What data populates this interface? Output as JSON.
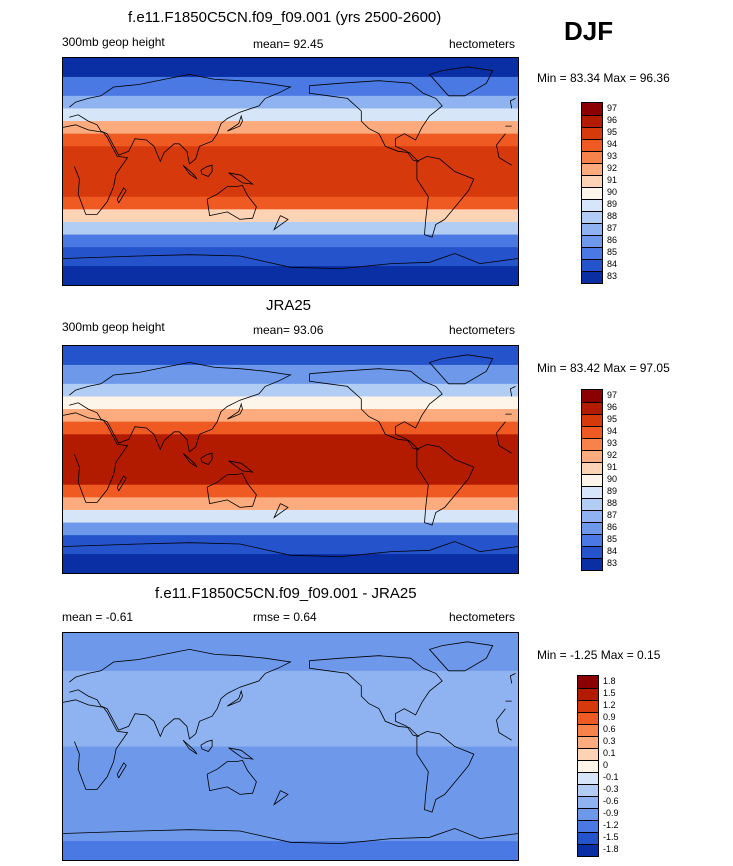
{
  "season": "DJF",
  "panels": [
    {
      "id": "model",
      "title": "f.e11.F1850C5CN.f09_f09.001 (yrs 2500-2600)",
      "left_label": "300mb geop height",
      "center_label": "mean=  92.45",
      "right_label": "hectometers",
      "minmax": "Min =  83.34 Max =  96.36",
      "colorbar_labels": [
        "97",
        "96",
        "95",
        "94",
        "93",
        "92",
        "91",
        "90",
        "89",
        "88",
        "87",
        "86",
        "85",
        "84",
        "83"
      ]
    },
    {
      "id": "obs",
      "title": "JRA25",
      "left_label": "300mb geop height",
      "center_label": "mean=  93.06",
      "right_label": "hectometers",
      "minmax": "Min =  83.42 Max =  97.05",
      "colorbar_labels": [
        "97",
        "96",
        "95",
        "94",
        "93",
        "92",
        "91",
        "90",
        "89",
        "88",
        "87",
        "86",
        "85",
        "84",
        "83"
      ]
    },
    {
      "id": "diff",
      "title": "f.e11.F1850C5CN.f09_f09.001 - JRA25",
      "left_label": "mean =  -0.61",
      "center_label": "rmse =   0.64",
      "right_label": "hectometers",
      "minmax": "Min =  -1.25 Max =   0.15",
      "colorbar_labels": [
        "1.8",
        "1.5",
        "1.2",
        "0.9",
        "0.6",
        "0.3",
        "0.1",
        "0",
        "-0.1",
        "-0.3",
        "-0.6",
        "-0.9",
        "-1.2",
        "-1.5",
        "-1.8"
      ]
    }
  ],
  "chart_data": [
    {
      "type": "heatmap",
      "title": "f.e11.F1850C5CN.f09_f09.001 (yrs 2500-2600)",
      "variable": "300mb geop height",
      "units": "hectometers",
      "mean": 92.45,
      "min": 83.34,
      "max": 96.36,
      "levels": [
        83,
        84,
        85,
        86,
        87,
        88,
        89,
        90,
        91,
        92,
        93,
        94,
        95,
        96,
        97
      ],
      "zonal_profile": {
        "lat": [
          90,
          75,
          60,
          50,
          40,
          30,
          20,
          10,
          0,
          -10,
          -20,
          -30,
          -40,
          -50,
          -60,
          -75,
          -90
        ],
        "value": [
          83.4,
          84.5,
          86.5,
          88.5,
          91,
          93.5,
          95.2,
          95.8,
          96.0,
          95.8,
          95.2,
          93.5,
          90,
          87,
          84.5,
          83.6,
          83.4
        ]
      }
    },
    {
      "type": "heatmap",
      "title": "JRA25",
      "variable": "300mb geop height",
      "units": "hectometers",
      "mean": 93.06,
      "min": 83.42,
      "max": 97.05,
      "levels": [
        83,
        84,
        85,
        86,
        87,
        88,
        89,
        90,
        91,
        92,
        93,
        94,
        95,
        96,
        97
      ],
      "zonal_profile": {
        "lat": [
          90,
          75,
          60,
          50,
          40,
          30,
          20,
          10,
          0,
          -10,
          -20,
          -30,
          -40,
          -50,
          -60,
          -75,
          -90
        ],
        "value": [
          83.5,
          85,
          87,
          89,
          91.5,
          94,
          95.7,
          96.3,
          96.5,
          96.3,
          95.7,
          94,
          91,
          88,
          85,
          84,
          83.5
        ]
      }
    },
    {
      "type": "heatmap",
      "title": "f.e11.F1850C5CN.f09_f09.001 - JRA25",
      "units": "hectometers",
      "mean": -0.61,
      "rmse": 0.64,
      "min": -1.25,
      "max": 0.15,
      "levels": [
        -1.8,
        -1.5,
        -1.2,
        -0.9,
        -0.6,
        -0.3,
        -0.1,
        0,
        0.1,
        0.3,
        0.6,
        0.9,
        1.2,
        1.5,
        1.8
      ],
      "zonal_profile": {
        "lat": [
          90,
          75,
          60,
          50,
          40,
          30,
          20,
          10,
          0,
          -10,
          -20,
          -30,
          -40,
          -50,
          -60,
          -75,
          -90
        ],
        "value": [
          -0.8,
          -0.7,
          -0.6,
          -0.55,
          -0.5,
          -0.55,
          -0.5,
          -0.6,
          -0.6,
          -0.65,
          -0.7,
          -0.6,
          -0.9,
          -0.7,
          -0.8,
          -0.9,
          -1.0
        ]
      }
    }
  ]
}
